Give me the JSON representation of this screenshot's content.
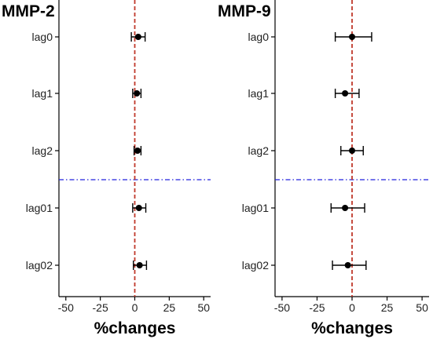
{
  "chart_data": [
    {
      "type": "forest",
      "title": "MMP-2",
      "xlabel": "%changes",
      "xlim": [
        -55,
        55
      ],
      "xticks": [
        -50,
        -25,
        0,
        25,
        50
      ],
      "xtick_labels": [
        "-50",
        "-25",
        "0",
        "25",
        "50"
      ],
      "reference_line_x": 0,
      "separator_after": "lag2",
      "categories": [
        "lag0",
        "lag1",
        "lag2",
        "lag01",
        "lag02"
      ],
      "estimates": [
        2.5,
        1.5,
        2.0,
        3.0,
        3.5
      ],
      "ci_lower": [
        -2.5,
        -1.5,
        -0.5,
        -1.5,
        -1.0
      ],
      "ci_upper": [
        7.5,
        4.5,
        4.5,
        8.0,
        8.5
      ]
    },
    {
      "type": "forest",
      "title": "MMP-9",
      "xlabel": "%changes",
      "xlim": [
        -55,
        55
      ],
      "xticks": [
        -50,
        -25,
        0,
        25,
        50
      ],
      "xtick_labels": [
        "-50",
        "-25",
        "0",
        "25",
        "50"
      ],
      "reference_line_x": 0,
      "separator_after": "lag2",
      "categories": [
        "lag0",
        "lag1",
        "lag2",
        "lag01",
        "lag02"
      ],
      "estimates": [
        0.0,
        -5.0,
        0.0,
        -5.0,
        -3.0
      ],
      "ci_lower": [
        -12.0,
        -12.0,
        -8.0,
        -15.0,
        -14.0
      ],
      "ci_upper": [
        14.0,
        5.0,
        8.0,
        9.0,
        10.0
      ]
    }
  ],
  "colors": {
    "reference_line": "#c0392b",
    "separator_line": "#2222dd",
    "marker": "#000000"
  }
}
